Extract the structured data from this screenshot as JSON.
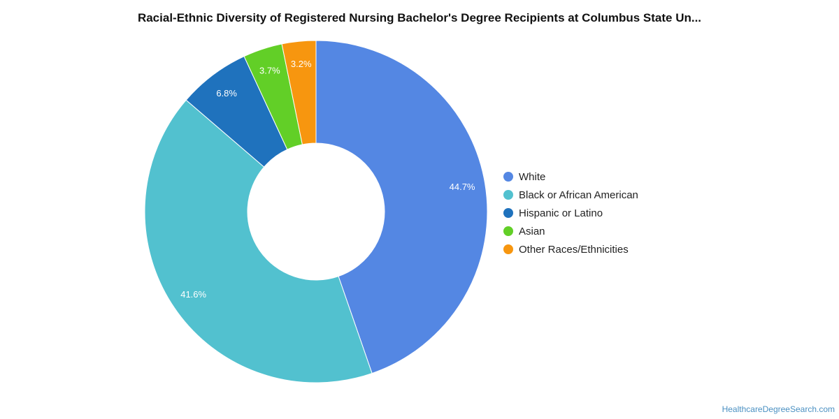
{
  "chart_data": {
    "type": "pie",
    "title": "Racial-Ethnic Diversity of Registered Nursing Bachelor's Degree Recipients at Columbus State Un...",
    "donut": true,
    "legend_position": "right",
    "categories": [
      "White",
      "Black or African American",
      "Hispanic or Latino",
      "Asian",
      "Other Races/Ethnicities"
    ],
    "values": [
      44.7,
      41.6,
      6.8,
      3.7,
      3.2
    ],
    "labels": [
      "44.7%",
      "41.6%",
      "6.8%",
      "3.7%",
      "3.2%"
    ],
    "colors": [
      "#5487e3",
      "#52c1cf",
      "#1f72bd",
      "#62cf27",
      "#f7960f"
    ]
  },
  "source": "HealthcareDegreeSearch.com"
}
